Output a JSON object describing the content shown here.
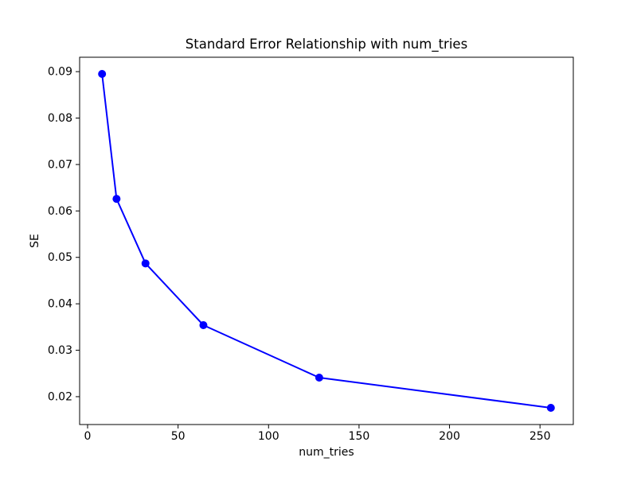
{
  "chart_data": {
    "type": "line",
    "title": "Standard Error Relationship with num_tries",
    "xlabel": "num_tries",
    "ylabel": "SE",
    "x": [
      8,
      16,
      32,
      64,
      128,
      256
    ],
    "y": [
      0.0895,
      0.0626,
      0.0487,
      0.0354,
      0.0241,
      0.0176
    ],
    "line_color": "#0000ff",
    "marker": "circle",
    "marker_radius": 5,
    "line_width": 2,
    "xlim": [
      -4.4,
      268.4
    ],
    "ylim": [
      0.014,
      0.0931
    ],
    "xticks": [
      0,
      50,
      100,
      150,
      200,
      250
    ],
    "xtick_labels": [
      "0",
      "50",
      "100",
      "150",
      "200",
      "250"
    ],
    "yticks": [
      0.02,
      0.03,
      0.04,
      0.05,
      0.06,
      0.07,
      0.08,
      0.09
    ],
    "ytick_labels": [
      "0.02",
      "0.03",
      "0.04",
      "0.05",
      "0.06",
      "0.07",
      "0.08",
      "0.09"
    ],
    "grid": false,
    "legend_position": "none",
    "background": "#ffffff",
    "axes_color": "#000000"
  }
}
